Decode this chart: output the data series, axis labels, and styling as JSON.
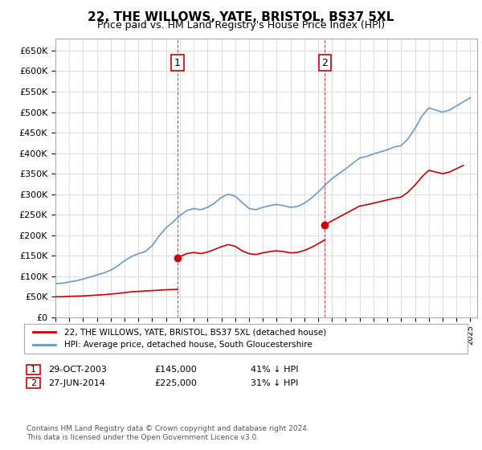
{
  "title": "22, THE WILLOWS, YATE, BRISTOL, BS37 5XL",
  "subtitle": "Price paid vs. HM Land Registry's House Price Index (HPI)",
  "xlim_start": 1995.0,
  "xlim_end": 2025.5,
  "ylim": [
    0,
    680000
  ],
  "yticks": [
    0,
    50000,
    100000,
    150000,
    200000,
    250000,
    300000,
    350000,
    400000,
    450000,
    500000,
    550000,
    600000,
    650000
  ],
  "ytick_labels": [
    "£0",
    "£50K",
    "£100K",
    "£150K",
    "£200K",
    "£250K",
    "£300K",
    "£350K",
    "£400K",
    "£450K",
    "£500K",
    "£550K",
    "£600K",
    "£650K"
  ],
  "purchase1_date": 2003.83,
  "purchase1_value": 145000,
  "purchase1_label": "1",
  "purchase2_date": 2014.49,
  "purchase2_value": 225000,
  "purchase2_label": "2",
  "red_line_color": "#cc0000",
  "blue_line_color": "#6699cc",
  "grid_color": "#dddddd",
  "annotation_box_color": "#cc0000",
  "legend_entry1": "22, THE WILLOWS, YATE, BRISTOL, BS37 5XL (detached house)",
  "legend_entry2": "HPI: Average price, detached house, South Gloucestershire",
  "table_row1": [
    "1",
    "29-OCT-2003",
    "£145,000",
    "41% ↓ HPI"
  ],
  "table_row2": [
    "2",
    "27-JUN-2014",
    "£225,000",
    "31% ↓ HPI"
  ],
  "footer": "Contains HM Land Registry data © Crown copyright and database right 2024.\nThis data is licensed under the Open Government Licence v3.0.",
  "bg_color": "#ffffff"
}
